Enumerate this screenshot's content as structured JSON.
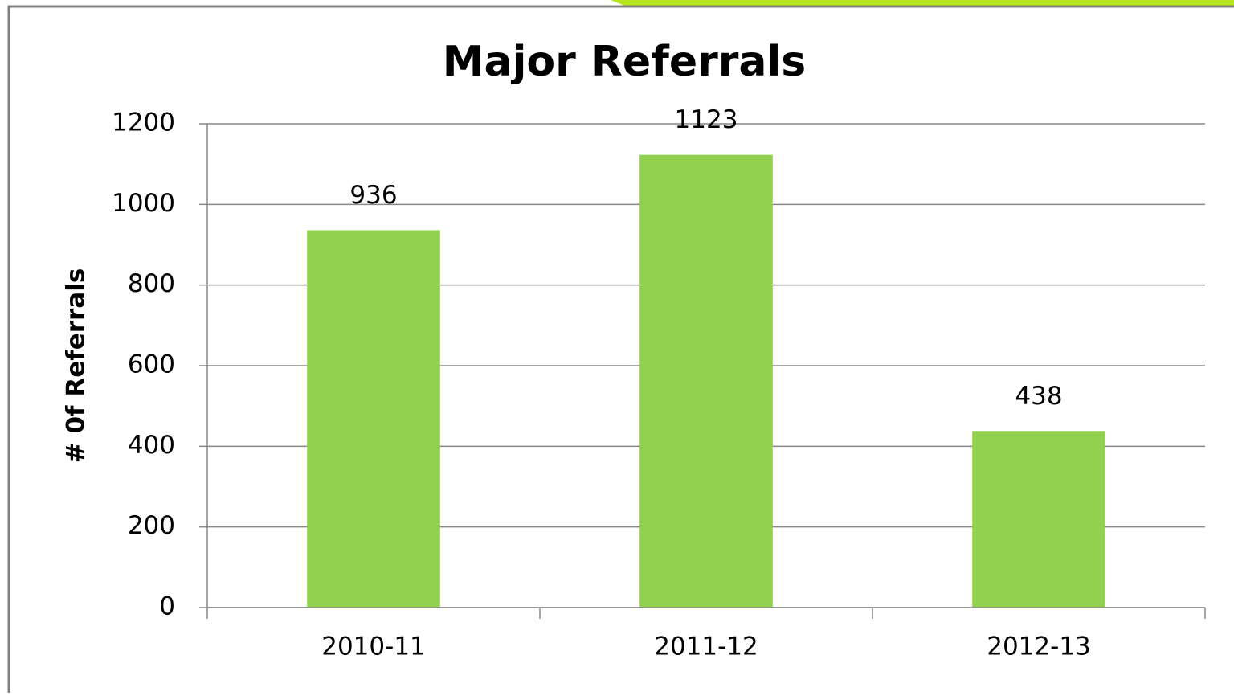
{
  "chart_data": {
    "type": "bar",
    "title": "Major Referrals",
    "y_label": "# 0f Referrals",
    "categories": [
      "2010-11",
      "2011-12",
      "2012-13"
    ],
    "values": [
      936,
      1123,
      438
    ],
    "color": "#92d050",
    "ylim": [
      0,
      1200
    ],
    "yticks": [
      0,
      200,
      400,
      600,
      800,
      1000,
      1200
    ],
    "grid": true
  }
}
